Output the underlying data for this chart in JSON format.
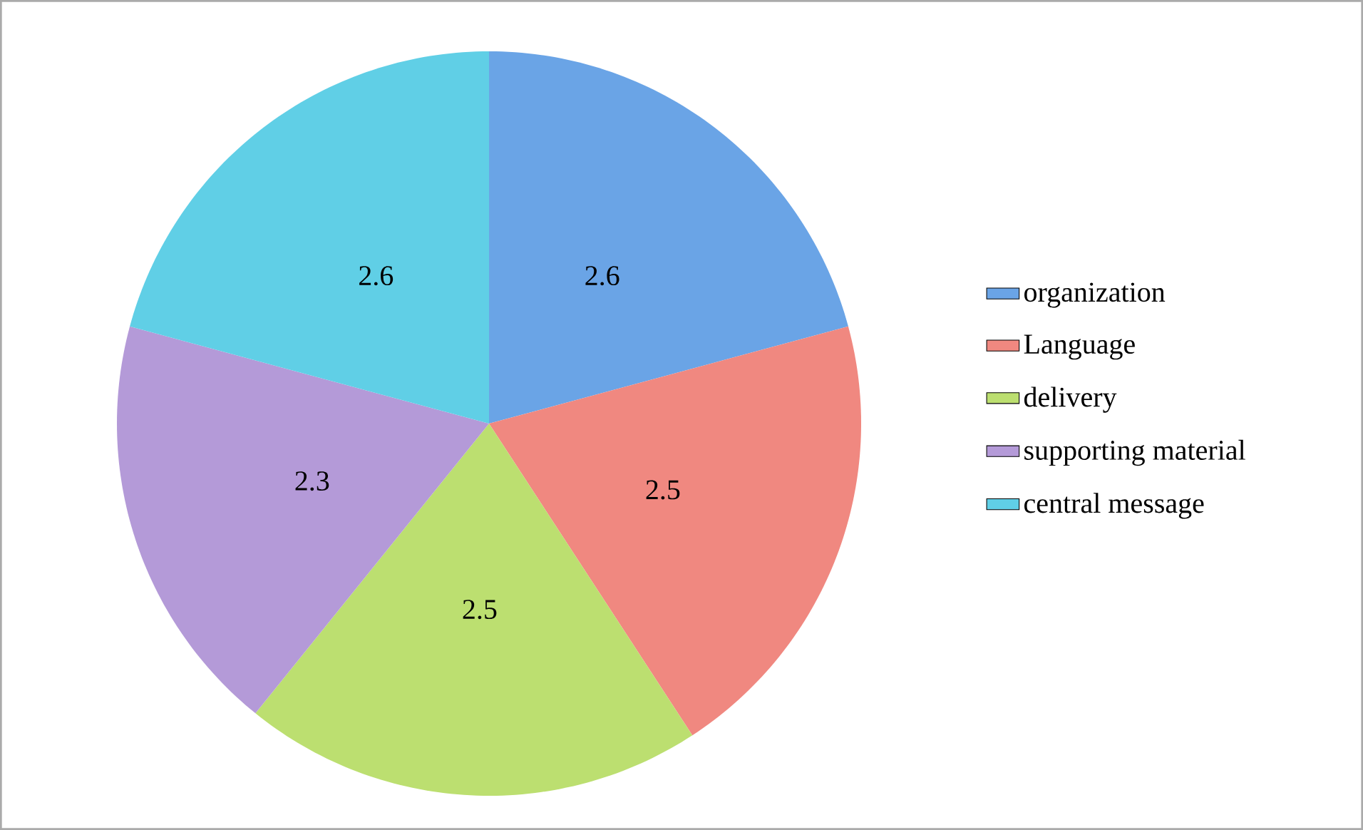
{
  "chart_data": {
    "type": "pie",
    "categories": [
      "organization",
      "Language",
      "delivery",
      "supporting material",
      "central message"
    ],
    "values": [
      2.6,
      2.5,
      2.5,
      2.3,
      2.6
    ],
    "colors": [
      "#6aa4e6",
      "#f08880",
      "#bcdf70",
      "#b49ad8",
      "#60cfe6"
    ],
    "data_labels": true,
    "legend": "right"
  }
}
